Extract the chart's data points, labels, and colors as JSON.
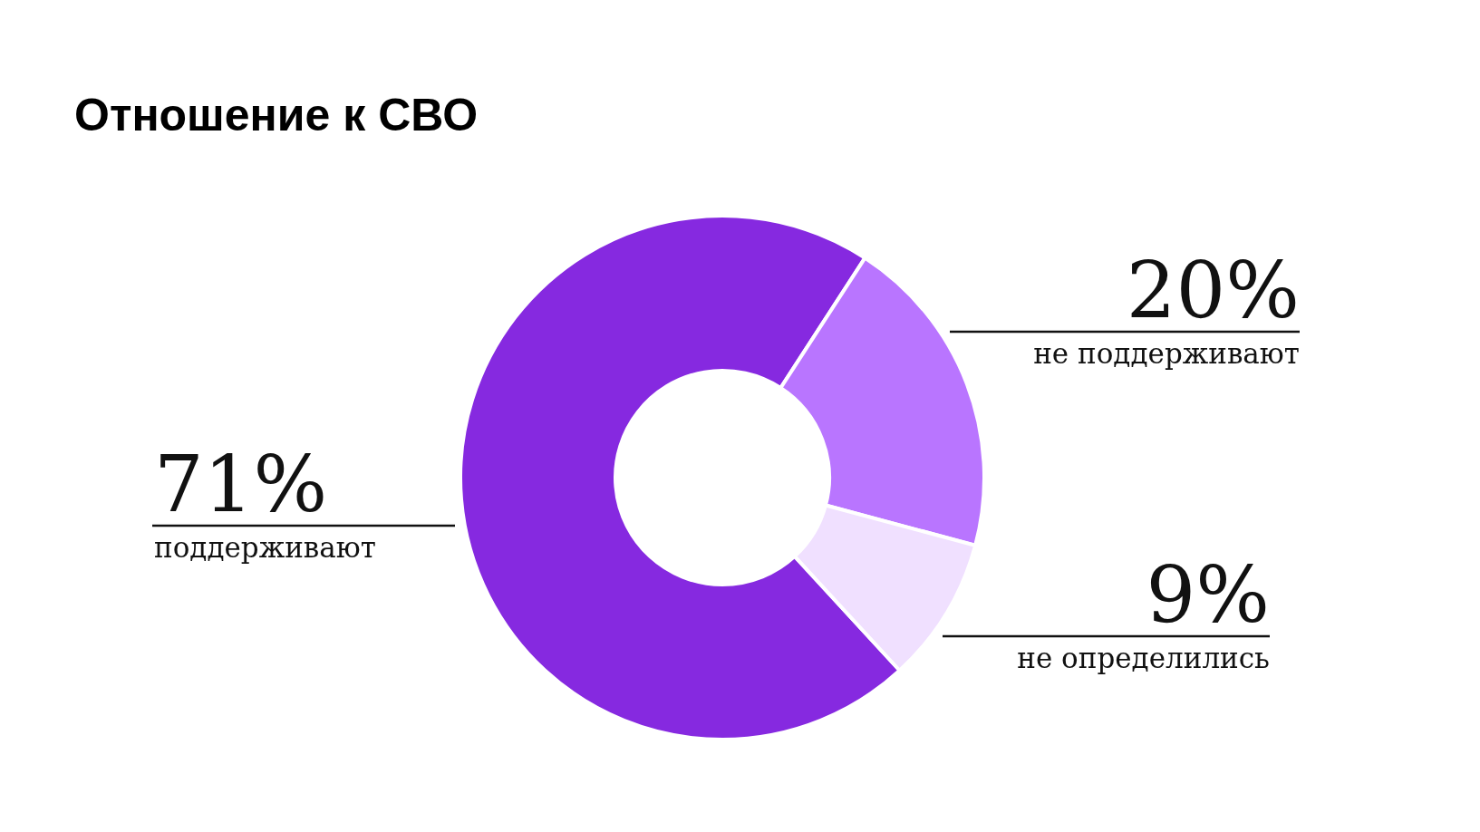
{
  "chart_data": {
    "type": "donut",
    "title": "Отношение к СВО",
    "categories": [
      "поддерживают",
      "не поддерживают",
      "не определились"
    ],
    "values": [
      71,
      20,
      9
    ],
    "colors": [
      "#8629e0",
      "#b975ff",
      "#f0e0ff"
    ],
    "value_labels": [
      "71%",
      "20%",
      "9%"
    ]
  }
}
